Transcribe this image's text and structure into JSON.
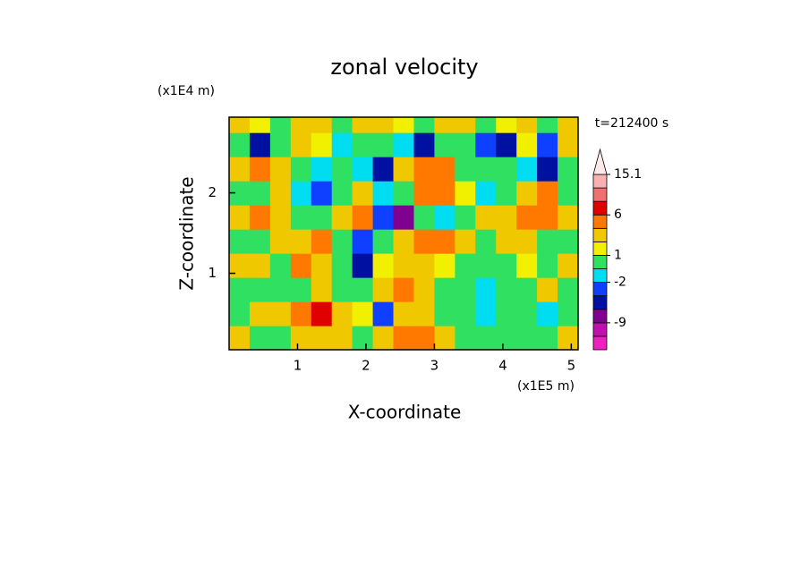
{
  "chart_data": {
    "type": "contour",
    "title": "zonal velocity",
    "xlabel": "X-coordinate",
    "ylabel": "Z-coordinate",
    "xunit": "(x1E5 m)",
    "yunit": "(x1E4 m)",
    "annotation": "t=212400 s",
    "xlim": [
      0,
      5.1
    ],
    "ylim": [
      0.05,
      2.94
    ],
    "xticks": [
      1,
      2,
      3,
      4,
      5
    ],
    "yticks": [
      1,
      2
    ],
    "x": [
      0.15,
      0.45,
      0.75,
      1.05,
      1.35,
      1.65,
      1.95,
      2.25,
      2.55,
      2.85,
      3.15,
      3.45,
      3.75,
      4.05,
      4.35,
      4.65,
      4.95
    ],
    "y": [
      0.2,
      0.5,
      0.8,
      1.1,
      1.4,
      1.7,
      2.0,
      2.3,
      2.6,
      2.9
    ],
    "z": [
      [
        2,
        0,
        0,
        2,
        2,
        2,
        0,
        2,
        4,
        3,
        2,
        0,
        0,
        -1,
        0,
        0,
        2
      ],
      [
        0,
        2,
        2,
        4,
        6,
        2,
        1,
        -4,
        2,
        2,
        0,
        -1,
        -2,
        -1,
        0,
        -2,
        0
      ],
      [
        0,
        0,
        0,
        0,
        2,
        0,
        0,
        2,
        4,
        2,
        -1,
        -1,
        -2,
        0,
        -1,
        2,
        0
      ],
      [
        2,
        2,
        0,
        4,
        2,
        -1,
        -5,
        1,
        2,
        2,
        1,
        0,
        0,
        -1,
        1,
        0,
        2
      ],
      [
        0,
        0,
        2,
        2,
        4,
        0,
        -3,
        -1,
        2,
        3,
        4,
        2,
        0,
        2,
        2,
        0,
        -1
      ],
      [
        2,
        3,
        2,
        -1,
        0,
        2,
        3,
        -3,
        -8,
        -1,
        -2,
        0,
        2,
        2,
        4,
        5,
        2
      ],
      [
        -1,
        0,
        2,
        -2,
        -3,
        0,
        2,
        -2,
        -1,
        4,
        4,
        1,
        -2,
        0,
        2,
        4,
        0
      ],
      [
        2,
        4,
        2,
        -1,
        -2,
        0,
        -2,
        -6,
        2,
        4,
        4,
        -1,
        0,
        0,
        -2,
        -6,
        0
      ],
      [
        0,
        -5,
        0,
        2,
        1,
        -2,
        0,
        -1,
        -2,
        -5,
        0,
        0,
        -3,
        -6,
        1,
        -3,
        2
      ],
      [
        2,
        1,
        0,
        2,
        2,
        0,
        2,
        2,
        1,
        0,
        2,
        2,
        0,
        1,
        2,
        0,
        2
      ]
    ],
    "levels": [
      -12,
      -9,
      -6,
      -4,
      -2,
      -1,
      1,
      2,
      3,
      6,
      9,
      12,
      15.1
    ],
    "colors": [
      "#f020c0",
      "#c010b0",
      "#800090",
      "#0010a0",
      "#1040ff",
      "#00dcf0",
      "#30e060",
      "#f0f000",
      "#f0c800",
      "#ff7800",
      "#e00000",
      "#f07070",
      "#f8b0b0",
      "#ffe8e8"
    ],
    "colorbar_ticks": [
      15.1,
      6,
      1,
      -2,
      -9
    ]
  }
}
